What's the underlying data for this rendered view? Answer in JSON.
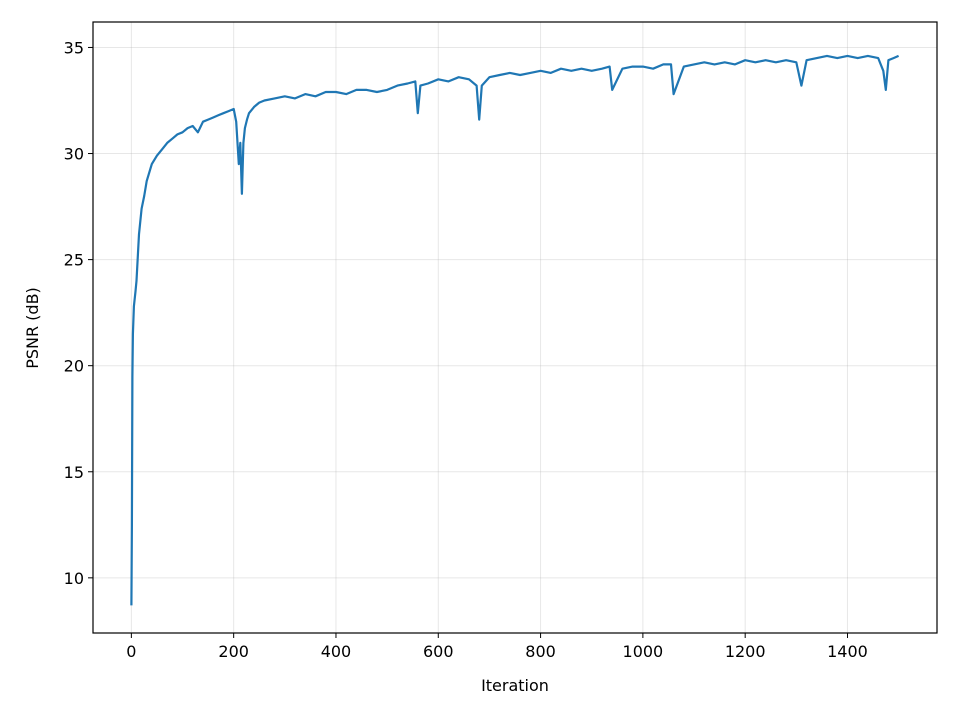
{
  "chart_data": {
    "type": "line",
    "title": "",
    "xlabel": "Iteration",
    "ylabel": "PSNR (dB)",
    "xlim": [
      -75,
      1575
    ],
    "ylim": [
      7.4,
      36.2
    ],
    "xticks": [
      0,
      200,
      400,
      600,
      800,
      1000,
      1200,
      1400
    ],
    "yticks": [
      10,
      15,
      20,
      25,
      30,
      35
    ],
    "grid": true,
    "legend": "none",
    "series": [
      {
        "color": "#1f77b4",
        "x": [
          0,
          1,
          2,
          3,
          5,
          8,
          10,
          15,
          20,
          25,
          30,
          40,
          50,
          60,
          70,
          80,
          90,
          100,
          110,
          120,
          130,
          140,
          150,
          160,
          170,
          180,
          190,
          200,
          205,
          210,
          213,
          216,
          219,
          222,
          226,
          230,
          240,
          250,
          260,
          280,
          300,
          320,
          340,
          360,
          380,
          400,
          420,
          440,
          460,
          480,
          500,
          520,
          540,
          555,
          560,
          565,
          580,
          600,
          620,
          640,
          660,
          675,
          680,
          685,
          700,
          720,
          740,
          760,
          780,
          800,
          820,
          840,
          860,
          880,
          900,
          920,
          935,
          940,
          960,
          980,
          1000,
          1020,
          1040,
          1055,
          1060,
          1080,
          1100,
          1120,
          1140,
          1160,
          1180,
          1200,
          1220,
          1240,
          1260,
          1280,
          1300,
          1310,
          1320,
          1340,
          1360,
          1380,
          1400,
          1420,
          1440,
          1460,
          1470,
          1475,
          1480,
          1490,
          1500
        ],
        "values": [
          8.7,
          12.5,
          19.5,
          21.5,
          22.8,
          23.5,
          24.0,
          26.2,
          27.4,
          28.0,
          28.7,
          29.5,
          29.9,
          30.2,
          30.5,
          30.7,
          30.9,
          31.0,
          31.2,
          31.3,
          31.0,
          31.5,
          31.6,
          31.7,
          31.8,
          31.9,
          32.0,
          32.1,
          31.5,
          29.5,
          30.5,
          28.1,
          30.5,
          31.2,
          31.6,
          31.9,
          32.2,
          32.4,
          32.5,
          32.6,
          32.7,
          32.6,
          32.8,
          32.7,
          32.9,
          32.9,
          32.8,
          33.0,
          33.0,
          32.9,
          33.0,
          33.2,
          33.3,
          33.4,
          31.9,
          33.2,
          33.3,
          33.5,
          33.4,
          33.6,
          33.5,
          33.2,
          31.6,
          33.2,
          33.6,
          33.7,
          33.8,
          33.7,
          33.8,
          33.9,
          33.8,
          34.0,
          33.9,
          34.0,
          33.9,
          34.0,
          34.1,
          33.0,
          34.0,
          34.1,
          34.1,
          34.0,
          34.2,
          34.2,
          32.8,
          34.1,
          34.2,
          34.3,
          34.2,
          34.3,
          34.2,
          34.4,
          34.3,
          34.4,
          34.3,
          34.4,
          34.3,
          33.2,
          34.4,
          34.5,
          34.6,
          34.5,
          34.6,
          34.5,
          34.6,
          34.5,
          33.9,
          33.0,
          34.4,
          34.5,
          34.6
        ]
      }
    ]
  }
}
